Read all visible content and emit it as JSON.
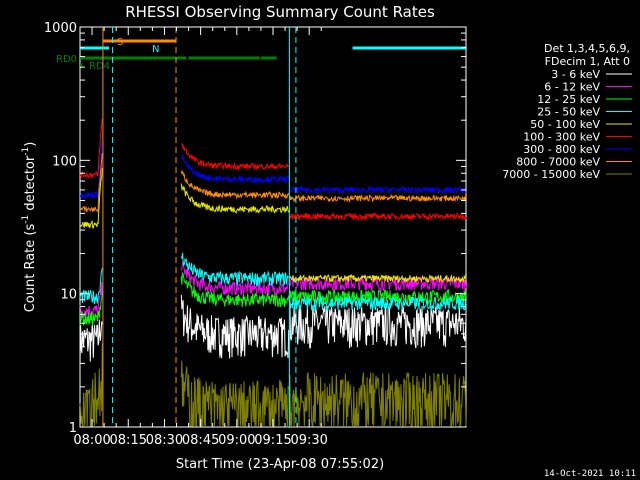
{
  "chart_data": {
    "type": "line",
    "title": "RHESSI Observing Summary Count Rates",
    "xlabel": "Start Time (23-Apr-08 07:55:02)",
    "ylabel_main": "Count Rate (s",
    "ylabel_sup1": "-1",
    "ylabel_mid": " detector",
    "ylabel_sup2": "-1",
    "ylabel_end": ")",
    "footer": "14-Oct-2021 10:11",
    "xlim_min": [
      475,
      635
    ],
    "ylim": [
      1,
      1000
    ],
    "yscale": "log",
    "x_ticks": [
      {
        "value": 480,
        "label": "08:00"
      },
      {
        "value": 495,
        "label": "08:15"
      },
      {
        "value": 510,
        "label": "08:30"
      },
      {
        "value": 525,
        "label": "08:45"
      },
      {
        "value": 540,
        "label": "09:00"
      },
      {
        "value": 555,
        "label": "09:15"
      },
      {
        "value": 570,
        "label": "09:30"
      }
    ],
    "y_ticks": [
      {
        "value": 1,
        "label": "1"
      },
      {
        "value": 10,
        "label": "10"
      },
      {
        "value": 100,
        "label": "100"
      },
      {
        "value": 1000,
        "label": "1000"
      }
    ],
    "legend_header": [
      "Det 1,3,4,5,6,9,",
      "FDecim 1, Att 0"
    ],
    "legend_position": "right",
    "series": [
      {
        "name": "3 - 6 keV",
        "color": "#ffffff"
      },
      {
        "name": "6 - 12 keV",
        "color": "#ff00ff"
      },
      {
        "name": "12 - 25 keV",
        "color": "#00ff00"
      },
      {
        "name": "25 - 50 keV",
        "color": "#00ffff"
      },
      {
        "name": "50 - 100 keV",
        "color": "#e6e600"
      },
      {
        "name": "100 - 300 keV",
        "color": "#ff0000"
      },
      {
        "name": "300 - 800 keV",
        "color": "#0000ff"
      },
      {
        "name": "800 - 7000 keV",
        "color": "#ff8c00"
      },
      {
        "name": "7000 - 15000 keV",
        "color": "#808000"
      }
    ],
    "flag_bars": [
      {
        "label": "S",
        "color": "#ff8c00",
        "segments": [
          [
            484.5,
            514.8
          ]
        ]
      },
      {
        "label": "N",
        "color": "#00ffff",
        "segments": [
          [
            475.0,
            487.0
          ],
          [
            588.0,
            635.0
          ]
        ]
      },
      {
        "label": "RD0",
        "color": "#008000",
        "segments": [
          [
            475.0,
            514.8
          ],
          [
            515.0,
            519.0
          ],
          [
            520.0,
            549.5
          ],
          [
            550.0,
            556.5
          ]
        ]
      },
      {
        "label": "RD4",
        "color": "#008000",
        "segments": [
          [
            475.0,
            476.0
          ]
        ]
      }
    ],
    "vlines": [
      {
        "x": 484.5,
        "color": "#ff8c00",
        "dash": false
      },
      {
        "x": 488.5,
        "color": "#00ffff",
        "dash": true
      },
      {
        "x": 514.8,
        "color": "#ff8c00",
        "dash": true
      },
      {
        "x": 561.8,
        "color": "#00ffff",
        "dash": false
      },
      {
        "x": 564.5,
        "color": "#00ffff",
        "dash": true
      }
    ]
  }
}
